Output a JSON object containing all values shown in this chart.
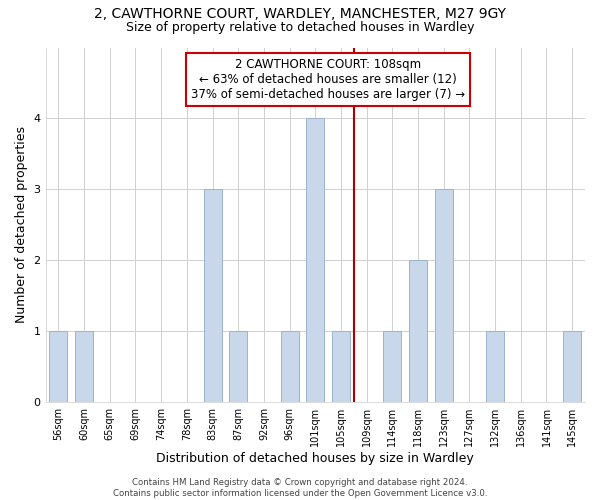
{
  "title_line1": "2, CAWTHORNE COURT, WARDLEY, MANCHESTER, M27 9GY",
  "title_line2": "Size of property relative to detached houses in Wardley",
  "xlabel": "Distribution of detached houses by size in Wardley",
  "ylabel": "Number of detached properties",
  "footnote": "Contains HM Land Registry data © Crown copyright and database right 2024.\nContains public sector information licensed under the Open Government Licence v3.0.",
  "bins": [
    "56sqm",
    "60sqm",
    "65sqm",
    "69sqm",
    "74sqm",
    "78sqm",
    "83sqm",
    "87sqm",
    "92sqm",
    "96sqm",
    "101sqm",
    "105sqm",
    "109sqm",
    "114sqm",
    "118sqm",
    "123sqm",
    "127sqm",
    "132sqm",
    "136sqm",
    "141sqm",
    "145sqm"
  ],
  "values": [
    1,
    1,
    0,
    0,
    0,
    0,
    3,
    1,
    0,
    1,
    4,
    1,
    0,
    1,
    2,
    3,
    0,
    1,
    0,
    0,
    1
  ],
  "bar_color": "#c8d8ea",
  "bar_edge_color": "#9ab4cc",
  "vline_x_bin": 11.5,
  "vline_color": "#aa0000",
  "annotation_text": "2 CAWTHORNE COURT: 108sqm\n← 63% of detached houses are smaller (12)\n37% of semi-detached houses are larger (7) →",
  "annotation_box_color": "#ffffff",
  "annotation_box_edge": "#cc0000",
  "ylim": [
    0,
    5
  ],
  "yticks": [
    0,
    1,
    2,
    3,
    4
  ],
  "bg_color": "#ffffff",
  "grid_color": "#d0d0d0",
  "title_fontsize": 10,
  "subtitle_fontsize": 9,
  "axis_label_fontsize": 9,
  "tick_fontsize": 7,
  "annotation_fontsize": 8.5
}
